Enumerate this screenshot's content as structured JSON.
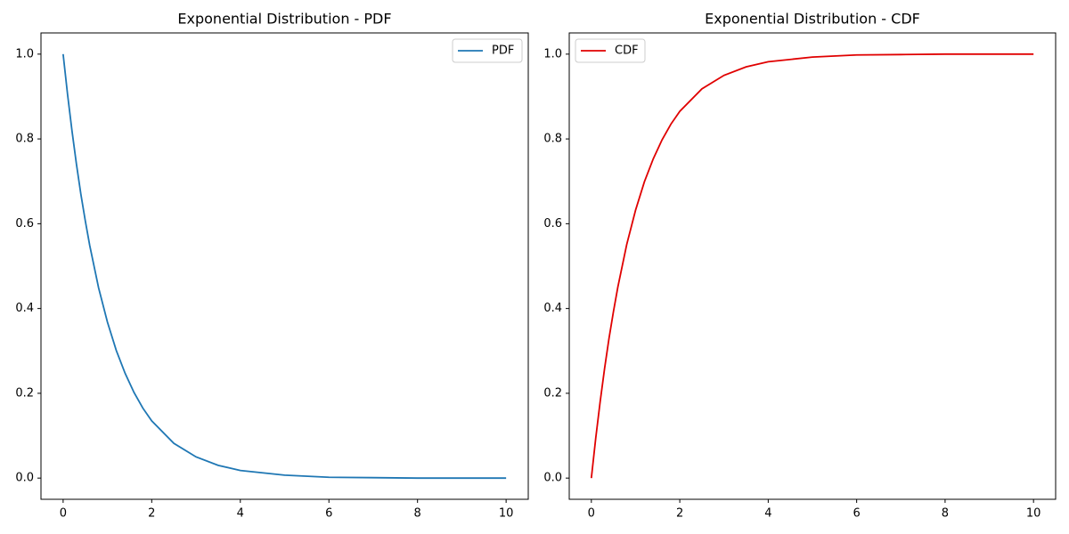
{
  "chart_data": [
    {
      "type": "line",
      "title": "Exponential Distribution - PDF",
      "x": [
        0,
        0.1,
        0.2,
        0.3,
        0.4,
        0.5,
        0.6,
        0.8,
        1,
        1.2,
        1.4,
        1.6,
        1.8,
        2,
        2.5,
        3,
        3.5,
        4,
        5,
        6,
        7,
        8,
        9,
        10
      ],
      "series": [
        {
          "name": "PDF",
          "color": "#1f77b4",
          "values": [
            1,
            0.905,
            0.819,
            0.741,
            0.67,
            0.607,
            0.549,
            0.449,
            0.368,
            0.301,
            0.247,
            0.202,
            0.165,
            0.135,
            0.082,
            0.05,
            0.03,
            0.018,
            0.007,
            0.002,
            0.001,
            0,
            0,
            0
          ]
        }
      ],
      "xlim": [
        -0.5,
        10.5
      ],
      "xticks": [
        0,
        2,
        4,
        6,
        8,
        10
      ],
      "ylim": [
        -0.05,
        1.05
      ],
      "yticks": [
        {
          "value": 0,
          "label": "0.0"
        },
        0.2,
        0.4,
        0.6,
        0.8,
        {
          "value": 1,
          "label": "1.0"
        }
      ],
      "legend": "upper right"
    },
    {
      "type": "line",
      "title": "Exponential Distribution - CDF",
      "x": [
        0,
        0.1,
        0.2,
        0.3,
        0.4,
        0.5,
        0.6,
        0.8,
        1,
        1.2,
        1.4,
        1.6,
        1.8,
        2,
        2.5,
        3,
        3.5,
        4,
        5,
        6,
        7,
        8,
        9,
        10
      ],
      "series": [
        {
          "name": "CDF",
          "color": "#e00000",
          "values": [
            0,
            0.095,
            0.181,
            0.259,
            0.33,
            0.393,
            0.451,
            0.551,
            0.632,
            0.699,
            0.753,
            0.798,
            0.835,
            0.865,
            0.918,
            0.95,
            0.97,
            0.982,
            0.993,
            0.998,
            0.999,
            1,
            1,
            1
          ]
        }
      ],
      "xlim": [
        -0.5,
        10.5
      ],
      "xticks": [
        0,
        2,
        4,
        6,
        8,
        10
      ],
      "ylim": [
        -0.05,
        1.05
      ],
      "yticks": [
        {
          "value": 0,
          "label": "0.0"
        },
        0.2,
        0.4,
        0.6,
        0.8,
        {
          "value": 1,
          "label": "1.0"
        }
      ],
      "legend": "upper left"
    }
  ]
}
